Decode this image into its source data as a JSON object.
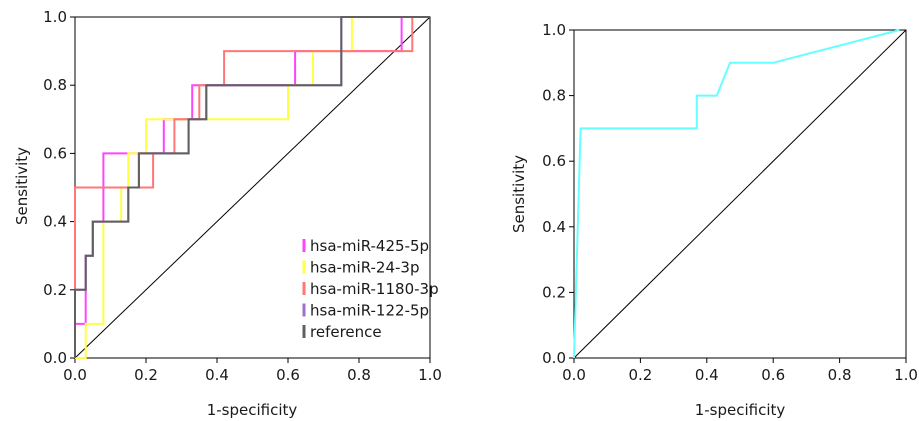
{
  "chart_data": [
    {
      "type": "line",
      "title": "",
      "xlabel": "1-specificity",
      "ylabel": "Sensitivity",
      "xlim": [
        0,
        1
      ],
      "ylim": [
        0,
        1
      ],
      "x_ticks": [
        "0.0",
        "0.2",
        "0.4",
        "0.6",
        "0.8",
        "1.0"
      ],
      "y_ticks": [
        "0.0",
        "0.2",
        "0.4",
        "0.6",
        "0.8",
        "1.0"
      ],
      "legend_position": "lower-right",
      "series": [
        {
          "name": "hsa-miR-425-5p",
          "color": "#ff44ff",
          "points": [
            [
              0,
              0
            ],
            [
              0,
              0.1
            ],
            [
              0.03,
              0.1
            ],
            [
              0.03,
              0.3
            ],
            [
              0.05,
              0.3
            ],
            [
              0.05,
              0.4
            ],
            [
              0.08,
              0.4
            ],
            [
              0.08,
              0.6
            ],
            [
              0.15,
              0.6
            ],
            [
              0.15,
              0.6
            ],
            [
              0.25,
              0.6
            ],
            [
              0.25,
              0.7
            ],
            [
              0.33,
              0.7
            ],
            [
              0.33,
              0.8
            ],
            [
              0.4,
              0.8
            ],
            [
              0.62,
              0.8
            ],
            [
              0.62,
              0.9
            ],
            [
              0.92,
              0.9
            ],
            [
              0.92,
              1.0
            ],
            [
              1.0,
              1.0
            ]
          ]
        },
        {
          "name": "hsa-miR-24-3p",
          "color": "#ffff44",
          "points": [
            [
              0,
              0
            ],
            [
              0.03,
              0
            ],
            [
              0.03,
              0.1
            ],
            [
              0.08,
              0.1
            ],
            [
              0.08,
              0.4
            ],
            [
              0.13,
              0.4
            ],
            [
              0.13,
              0.5
            ],
            [
              0.15,
              0.5
            ],
            [
              0.15,
              0.6
            ],
            [
              0.2,
              0.6
            ],
            [
              0.2,
              0.7
            ],
            [
              0.33,
              0.7
            ],
            [
              0.6,
              0.7
            ],
            [
              0.6,
              0.8
            ],
            [
              0.67,
              0.8
            ],
            [
              0.67,
              0.9
            ],
            [
              0.78,
              0.9
            ],
            [
              0.78,
              1.0
            ],
            [
              1.0,
              1.0
            ]
          ]
        },
        {
          "name": "hsa-miR-1180-3p",
          "color": "#ff7777",
          "points": [
            [
              0,
              0
            ],
            [
              0,
              0.5
            ],
            [
              0.15,
              0.5
            ],
            [
              0.22,
              0.5
            ],
            [
              0.22,
              0.6
            ],
            [
              0.28,
              0.6
            ],
            [
              0.28,
              0.7
            ],
            [
              0.35,
              0.7
            ],
            [
              0.35,
              0.8
            ],
            [
              0.42,
              0.8
            ],
            [
              0.42,
              0.9
            ],
            [
              0.95,
              0.9
            ],
            [
              0.95,
              1.0
            ],
            [
              1.0,
              1.0
            ]
          ]
        },
        {
          "name": "hsa-miR-122-5p",
          "color": "#a070c8",
          "points": [
            [
              0,
              0
            ],
            [
              0,
              0.2
            ],
            [
              0.03,
              0.2
            ],
            [
              0.03,
              0.3
            ],
            [
              0.05,
              0.3
            ],
            [
              0.05,
              0.4
            ],
            [
              0.15,
              0.4
            ],
            [
              0.15,
              0.5
            ],
            [
              0.18,
              0.5
            ],
            [
              0.18,
              0.6
            ],
            [
              0.27,
              0.6
            ],
            [
              0.32,
              0.6
            ],
            [
              0.32,
              0.7
            ],
            [
              0.37,
              0.7
            ],
            [
              0.37,
              0.8
            ],
            [
              0.75,
              0.8
            ],
            [
              0.75,
              1.0
            ],
            [
              1.0,
              1.0
            ]
          ]
        },
        {
          "name": "reference",
          "color": "#606060",
          "points": [
            [
              0,
              0
            ],
            [
              0,
              0.2
            ],
            [
              0.03,
              0.2
            ],
            [
              0.03,
              0.3
            ],
            [
              0.05,
              0.3
            ],
            [
              0.05,
              0.4
            ],
            [
              0.15,
              0.4
            ],
            [
              0.15,
              0.5
            ],
            [
              0.18,
              0.5
            ],
            [
              0.18,
              0.6
            ],
            [
              0.27,
              0.6
            ],
            [
              0.32,
              0.6
            ],
            [
              0.32,
              0.7
            ],
            [
              0.37,
              0.7
            ],
            [
              0.37,
              0.8
            ],
            [
              0.75,
              0.8
            ],
            [
              0.75,
              1.0
            ],
            [
              1.0,
              1.0
            ]
          ]
        }
      ],
      "diagonal": true
    },
    {
      "type": "line",
      "title": "",
      "xlabel": "1-specificity",
      "ylabel": "Sensitivity",
      "xlim": [
        0,
        1
      ],
      "ylim": [
        0,
        1
      ],
      "x_ticks": [
        "0.0",
        "0.2",
        "0.4",
        "0.6",
        "0.8",
        "1.0"
      ],
      "y_ticks": [
        "0.0",
        "0.2",
        "0.4",
        "0.6",
        "0.8",
        "1.0"
      ],
      "series": [
        {
          "name": "",
          "color": "#66ffff",
          "points": [
            [
              0,
              0
            ],
            [
              0.02,
              0.7
            ],
            [
              0.37,
              0.7
            ],
            [
              0.37,
              0.8
            ],
            [
              0.43,
              0.8
            ],
            [
              0.47,
              0.9
            ],
            [
              0.6,
              0.9
            ],
            [
              0.98,
              1.0
            ]
          ]
        }
      ],
      "diagonal": true
    }
  ]
}
